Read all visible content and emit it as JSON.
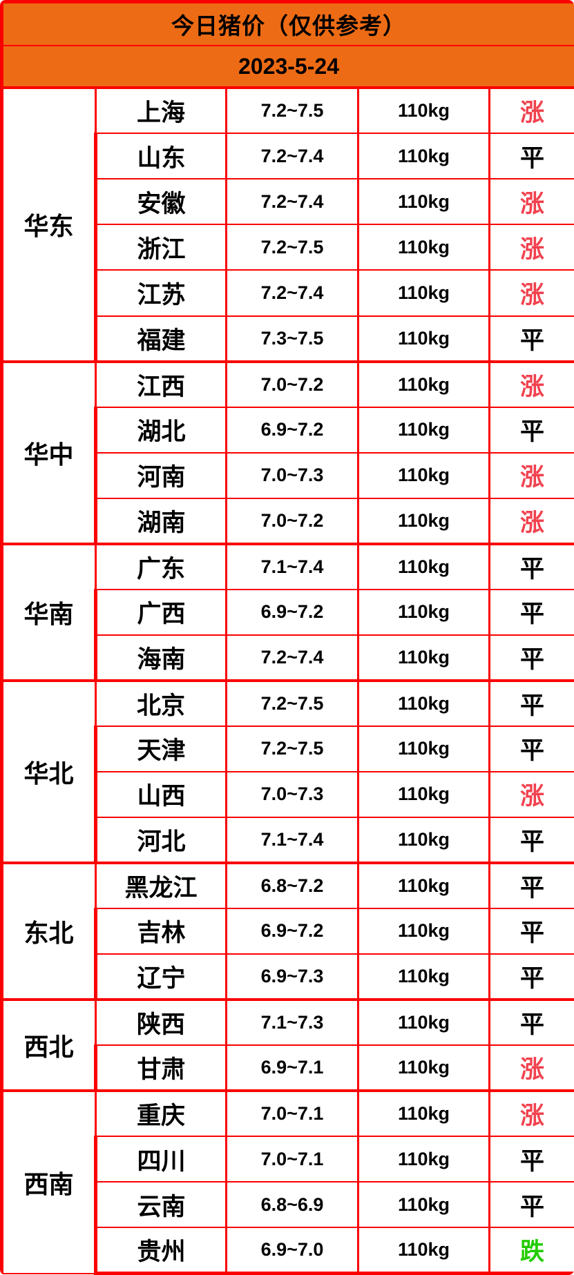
{
  "header": {
    "title": "今日猪价（仅供参考）",
    "date": "2023-5-24"
  },
  "colors": {
    "header_bg": "#EE6B15",
    "border_red": "#FB0000",
    "status_up_red": "#F1424F",
    "status_down_green": "#22CC00",
    "text_black": "#000000"
  },
  "chart_data": {
    "type": "table",
    "title": "今日猪价（仅供参考）",
    "date": "2023-5-24",
    "columns": [
      "region",
      "province",
      "price_range",
      "weight",
      "status"
    ],
    "regions": [
      {
        "name": "华东",
        "rows": [
          {
            "province": "上海",
            "price": "7.2~7.5",
            "weight": "110kg",
            "status": "涨",
            "trend": "up"
          },
          {
            "province": "山东",
            "price": "7.2~7.4",
            "weight": "110kg",
            "status": "平",
            "trend": "flat"
          },
          {
            "province": "安徽",
            "price": "7.2~7.4",
            "weight": "110kg",
            "status": "涨",
            "trend": "up"
          },
          {
            "province": "浙江",
            "price": "7.2~7.5",
            "weight": "110kg",
            "status": "涨",
            "trend": "up"
          },
          {
            "province": "江苏",
            "price": "7.2~7.4",
            "weight": "110kg",
            "status": "涨",
            "trend": "up"
          },
          {
            "province": "福建",
            "price": "7.3~7.5",
            "weight": "110kg",
            "status": "平",
            "trend": "flat"
          }
        ]
      },
      {
        "name": "华中",
        "rows": [
          {
            "province": "江西",
            "price": "7.0~7.2",
            "weight": "110kg",
            "status": "涨",
            "trend": "up"
          },
          {
            "province": "湖北",
            "price": "6.9~7.2",
            "weight": "110kg",
            "status": "平",
            "trend": "flat"
          },
          {
            "province": "河南",
            "price": "7.0~7.3",
            "weight": "110kg",
            "status": "涨",
            "trend": "up"
          },
          {
            "province": "湖南",
            "price": "7.0~7.2",
            "weight": "110kg",
            "status": "涨",
            "trend": "up"
          }
        ]
      },
      {
        "name": "华南",
        "rows": [
          {
            "province": "广东",
            "price": "7.1~7.4",
            "weight": "110kg",
            "status": "平",
            "trend": "flat"
          },
          {
            "province": "广西",
            "price": "6.9~7.2",
            "weight": "110kg",
            "status": "平",
            "trend": "flat"
          },
          {
            "province": "海南",
            "price": "7.2~7.4",
            "weight": "110kg",
            "status": "平",
            "trend": "flat"
          }
        ]
      },
      {
        "name": "华北",
        "rows": [
          {
            "province": "北京",
            "price": "7.2~7.5",
            "weight": "110kg",
            "status": "平",
            "trend": "flat"
          },
          {
            "province": "天津",
            "price": "7.2~7.5",
            "weight": "110kg",
            "status": "平",
            "trend": "flat"
          },
          {
            "province": "山西",
            "price": "7.0~7.3",
            "weight": "110kg",
            "status": "涨",
            "trend": "up"
          },
          {
            "province": "河北",
            "price": "7.1~7.4",
            "weight": "110kg",
            "status": "平",
            "trend": "flat"
          }
        ]
      },
      {
        "name": "东北",
        "rows": [
          {
            "province": "黑龙江",
            "price": "6.8~7.2",
            "weight": "110kg",
            "status": "平",
            "trend": "flat"
          },
          {
            "province": "吉林",
            "price": "6.9~7.2",
            "weight": "110kg",
            "status": "平",
            "trend": "flat"
          },
          {
            "province": "辽宁",
            "price": "6.9~7.3",
            "weight": "110kg",
            "status": "平",
            "trend": "flat"
          }
        ]
      },
      {
        "name": "西北",
        "rows": [
          {
            "province": "陕西",
            "price": "7.1~7.3",
            "weight": "110kg",
            "status": "平",
            "trend": "flat"
          },
          {
            "province": "甘肃",
            "price": "6.9~7.1",
            "weight": "110kg",
            "status": "涨",
            "trend": "up"
          }
        ]
      },
      {
        "name": "西南",
        "rows": [
          {
            "province": "重庆",
            "price": "7.0~7.1",
            "weight": "110kg",
            "status": "涨",
            "trend": "up"
          },
          {
            "province": "四川",
            "price": "7.0~7.1",
            "weight": "110kg",
            "status": "平",
            "trend": "flat"
          },
          {
            "province": "云南",
            "price": "6.8~6.9",
            "weight": "110kg",
            "status": "平",
            "trend": "flat"
          },
          {
            "province": "贵州",
            "price": "6.9~7.0",
            "weight": "110kg",
            "status": "跌",
            "trend": "down"
          }
        ]
      }
    ]
  }
}
